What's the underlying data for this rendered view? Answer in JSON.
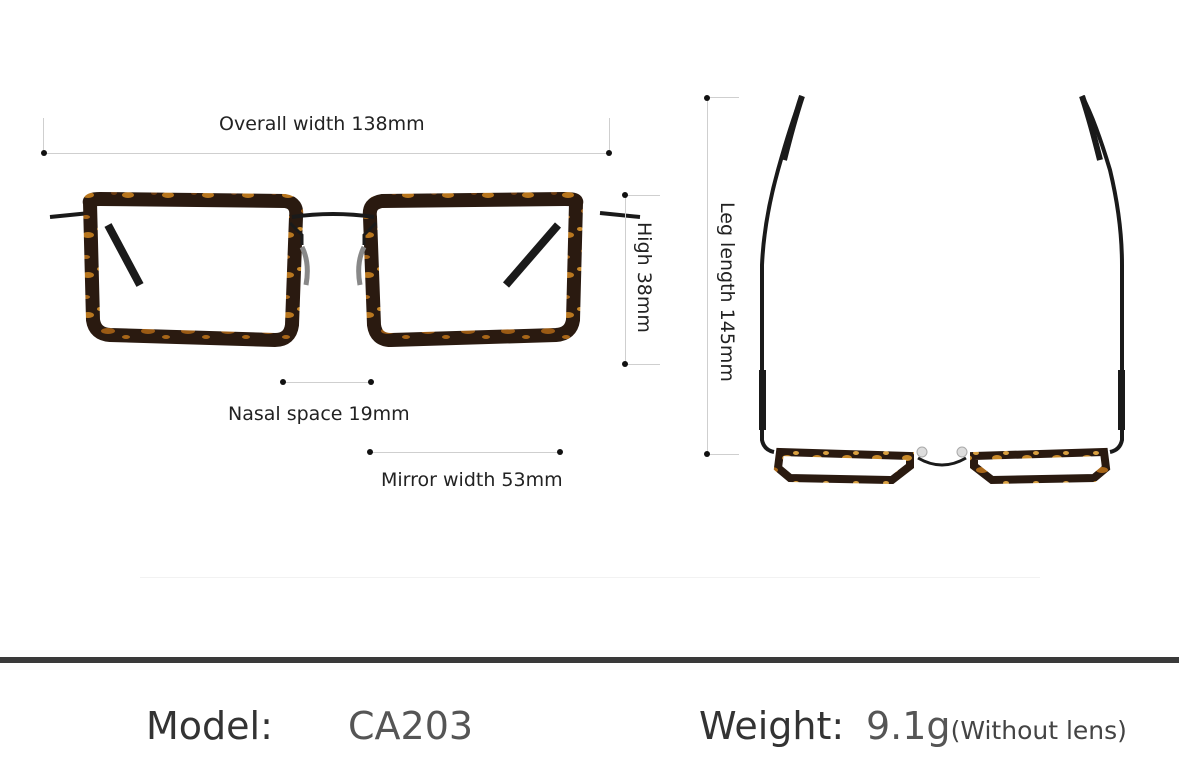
{
  "dimensions": {
    "overall_width": "Overall width 138mm",
    "high": "High 38mm",
    "nasal_space": "Nasal space 19mm",
    "mirror_width": "Mirror width 53mm",
    "leg_length": "Leg length 145mm"
  },
  "specs": {
    "model_label": "Model:",
    "model_value": "CA203",
    "weight_label": "Weight:",
    "weight_value": "9.1g",
    "weight_note": "(Without lens)"
  },
  "colors": {
    "tortoise_dark": "#2a1a10",
    "tortoise_light": "#b8761e",
    "metal": "#1a1a1a",
    "divider": "#3a3a3a"
  }
}
